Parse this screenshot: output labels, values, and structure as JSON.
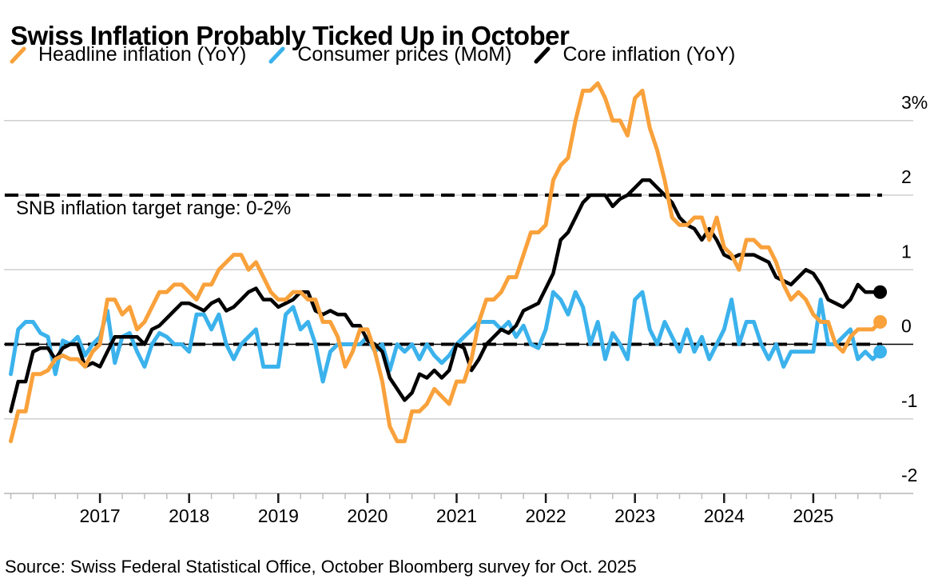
{
  "title": "Swiss Inflation Probably Ticked Up in October",
  "legend": [
    {
      "label": "Headline inflation (YoY)",
      "color": "#F9A13B"
    },
    {
      "label": "Consumer prices (MoM)",
      "color": "#3BB2EC"
    },
    {
      "label": "Core inflation (YoY)",
      "color": "#000000"
    }
  ],
  "annotation": "SNB inflation target range: 0-2%",
  "source": "Source: Swiss Federal Statistical Office, October Bloomberg survey for Oct. 2025",
  "colors": {
    "gridline": "#CFCFCF",
    "axis_line": "#C8C8C8",
    "minor_tick": "#BDBDBD",
    "major_tick": "#1A1A1A",
    "target_line": "#000000",
    "zero_line": "#000000",
    "text": "#000000"
  },
  "chart_data": {
    "type": "line",
    "title": "Swiss Inflation Probably Ticked Up in October",
    "x_start": "2016-01",
    "x_end": "2025-10",
    "x_frequency": "monthly",
    "last_point_is_forecast": true,
    "forecast_label": "Oct. 2025",
    "x_ticks": [
      "2017",
      "2018",
      "2019",
      "2020",
      "2021",
      "2022",
      "2023",
      "2024",
      "2025"
    ],
    "y_ticks": [
      {
        "value": 3,
        "label": "3%"
      },
      {
        "value": 2,
        "label": "2"
      },
      {
        "value": 1,
        "label": "1"
      },
      {
        "value": 0,
        "label": "0"
      },
      {
        "value": -1,
        "label": "-1"
      },
      {
        "value": -2,
        "label": "-2"
      }
    ],
    "ylim": [
      -2.3,
      3.7
    ],
    "grid": true,
    "legend_position": "top",
    "target_lines": [
      2,
      0
    ],
    "series": [
      {
        "name": "Headline inflation (YoY)",
        "color": "#F9A13B",
        "values": [
          -1.3,
          -0.9,
          -0.9,
          -0.4,
          -0.4,
          -0.35,
          -0.2,
          -0.15,
          -0.2,
          -0.2,
          -0.3,
          -0.1,
          0.0,
          0.6,
          0.6,
          0.4,
          0.5,
          0.2,
          0.3,
          0.5,
          0.7,
          0.7,
          0.8,
          0.8,
          0.7,
          0.6,
          0.8,
          0.8,
          1.0,
          1.1,
          1.2,
          1.2,
          1.0,
          1.1,
          0.9,
          0.7,
          0.6,
          0.6,
          0.7,
          0.7,
          0.6,
          0.6,
          0.3,
          0.3,
          0.1,
          -0.3,
          -0.1,
          0.2,
          0.2,
          -0.1,
          -0.5,
          -1.1,
          -1.3,
          -1.3,
          -0.9,
          -0.9,
          -0.8,
          -0.6,
          -0.7,
          -0.8,
          -0.5,
          -0.5,
          -0.2,
          0.3,
          0.6,
          0.6,
          0.7,
          0.9,
          0.9,
          1.2,
          1.5,
          1.5,
          1.6,
          2.2,
          2.4,
          2.5,
          3.0,
          3.4,
          3.4,
          3.5,
          3.3,
          3.0,
          3.0,
          2.8,
          3.3,
          3.4,
          2.9,
          2.6,
          2.2,
          1.7,
          1.6,
          1.6,
          1.7,
          1.7,
          1.4,
          1.7,
          1.3,
          1.2,
          1.0,
          1.4,
          1.4,
          1.3,
          1.3,
          1.1,
          0.8,
          0.6,
          0.7,
          0.6,
          0.4,
          0.3,
          0.3,
          0.0,
          -0.1,
          0.1,
          0.2,
          0.2,
          0.2,
          0.3
        ]
      },
      {
        "name": "Consumer prices (MoM)",
        "color": "#3BB2EC",
        "values": [
          -0.4,
          0.2,
          0.3,
          0.3,
          0.15,
          0.1,
          -0.4,
          0.05,
          0.0,
          0.1,
          -0.15,
          0.0,
          0.1,
          0.45,
          -0.25,
          0.1,
          0.15,
          -0.1,
          -0.3,
          0.0,
          0.15,
          0.1,
          0.0,
          0.0,
          -0.1,
          0.4,
          0.4,
          0.2,
          0.4,
          0.0,
          -0.2,
          0.0,
          0.1,
          0.2,
          -0.3,
          -0.3,
          -0.3,
          0.4,
          0.5,
          0.2,
          0.3,
          0.0,
          -0.5,
          -0.1,
          0.0,
          0.0,
          0.0,
          0.0,
          0.1,
          -0.1,
          0.0,
          -0.35,
          0.0,
          -0.1,
          0.0,
          -0.2,
          0.0,
          -0.15,
          -0.25,
          -0.15,
          0.0,
          0.1,
          0.2,
          0.3,
          0.3,
          0.3,
          0.2,
          0.3,
          0.1,
          0.25,
          0.0,
          -0.05,
          0.2,
          0.7,
          0.6,
          0.4,
          0.7,
          0.5,
          0.0,
          0.3,
          -0.2,
          0.15,
          0.0,
          -0.2,
          0.6,
          0.7,
          0.2,
          0.0,
          0.3,
          0.1,
          -0.1,
          0.2,
          -0.1,
          0.1,
          -0.2,
          0.0,
          0.2,
          0.6,
          0.0,
          0.3,
          0.3,
          0.0,
          -0.2,
          0.0,
          -0.3,
          -0.1,
          -0.1,
          -0.1,
          -0.1,
          0.6,
          0.0,
          0.0,
          0.1,
          0.2,
          -0.2,
          -0.1,
          -0.2,
          -0.1
        ]
      },
      {
        "name": "Core inflation (YoY)",
        "color": "#000000",
        "values": [
          -0.9,
          -0.5,
          -0.5,
          -0.1,
          -0.05,
          -0.05,
          -0.2,
          -0.05,
          0.0,
          0.0,
          -0.3,
          -0.25,
          -0.3,
          -0.1,
          0.1,
          0.1,
          0.1,
          0.1,
          0.0,
          0.2,
          0.25,
          0.35,
          0.45,
          0.55,
          0.55,
          0.5,
          0.45,
          0.55,
          0.6,
          0.45,
          0.5,
          0.6,
          0.7,
          0.75,
          0.6,
          0.6,
          0.5,
          0.55,
          0.6,
          0.7,
          0.7,
          0.45,
          0.4,
          0.45,
          0.4,
          0.4,
          0.25,
          0.25,
          0.05,
          0.0,
          -0.1,
          -0.45,
          -0.6,
          -0.75,
          -0.65,
          -0.4,
          -0.45,
          -0.35,
          -0.45,
          -0.35,
          0.0,
          -0.05,
          -0.35,
          -0.2,
          0.0,
          0.1,
          0.2,
          0.15,
          0.25,
          0.45,
          0.5,
          0.55,
          0.75,
          0.95,
          1.4,
          1.5,
          1.7,
          1.9,
          2.0,
          2.0,
          2.0,
          1.85,
          1.95,
          2.0,
          2.1,
          2.2,
          2.2,
          2.1,
          2.0,
          1.9,
          1.7,
          1.6,
          1.55,
          1.4,
          1.55,
          1.4,
          1.2,
          1.15,
          1.2,
          1.2,
          1.2,
          1.15,
          1.1,
          0.9,
          0.85,
          0.8,
          0.9,
          1.0,
          0.95,
          0.8,
          0.6,
          0.55,
          0.5,
          0.6,
          0.8,
          0.7,
          0.7,
          0.7
        ]
      }
    ]
  }
}
